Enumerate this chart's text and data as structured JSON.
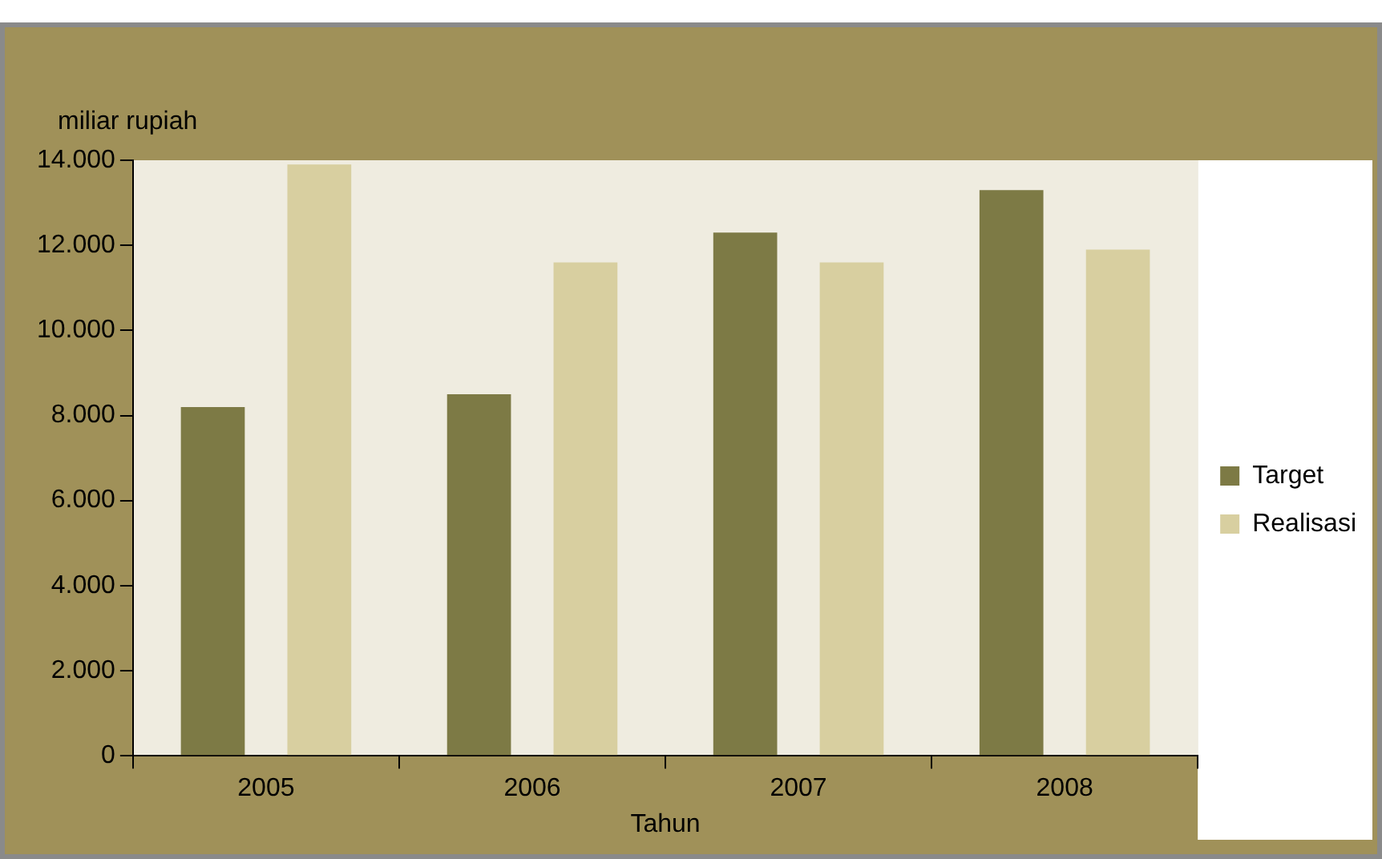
{
  "chart_data": {
    "type": "bar",
    "xlabel": "Tahun",
    "ylabel": "miliar rupiah",
    "categories": [
      "2005",
      "2006",
      "2007",
      "2008"
    ],
    "series": [
      {
        "name": "Target",
        "color": "#7d7a45",
        "values": [
          8200,
          8500,
          12300,
          13300
        ]
      },
      {
        "name": "Realisasi",
        "color": "#d8cfa0",
        "values": [
          13900,
          11600,
          11600,
          11900
        ]
      }
    ],
    "ylim": [
      0,
      14000
    ],
    "yticks": [
      {
        "value": 0,
        "label": "0"
      },
      {
        "value": 2000,
        "label": "2.000"
      },
      {
        "value": 4000,
        "label": "4.000"
      },
      {
        "value": 6000,
        "label": "6.000"
      },
      {
        "value": 8000,
        "label": "8.000"
      },
      {
        "value": 10000,
        "label": "10.000"
      },
      {
        "value": 12000,
        "label": "12.000"
      },
      {
        "value": 14000,
        "label": "14.000"
      }
    ],
    "grid": false,
    "legend": "right"
  }
}
